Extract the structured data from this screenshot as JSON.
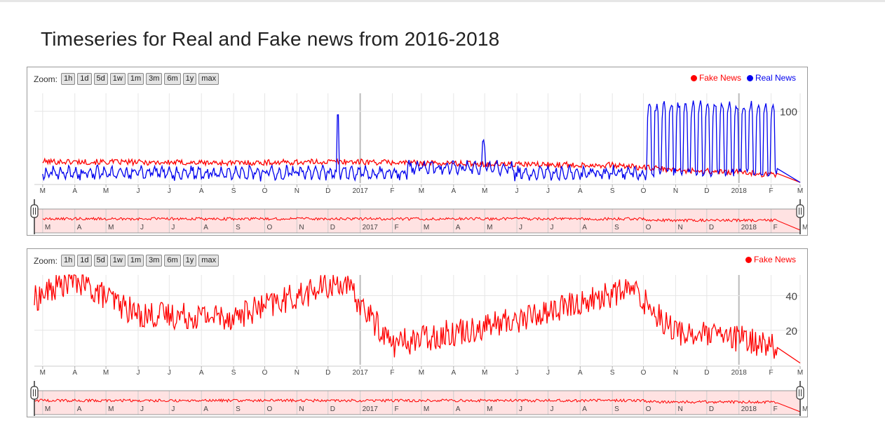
{
  "page": {
    "title": "Timeseries for Real and Fake news from 2016-2018"
  },
  "zoom": {
    "label": "Zoom:",
    "buttons": [
      "1h",
      "1d",
      "5d",
      "1w",
      "1m",
      "3m",
      "6m",
      "1y",
      "max"
    ]
  },
  "colors": {
    "fake": "#ff0000",
    "real": "#0000ee",
    "grid": "#e6e6e6",
    "navigator_fill": "#ffe2e2"
  },
  "chart_data": [
    {
      "type": "line",
      "title": "",
      "x_range": [
        "2016-02-22",
        "2018-03-01"
      ],
      "y_ticks": [
        100
      ],
      "ylim": [
        0,
        125
      ],
      "month_ticks": [
        "M",
        "A",
        "M",
        "J",
        "J",
        "A",
        "S",
        "O",
        "N",
        "D",
        "2017",
        "F",
        "M",
        "A",
        "M",
        "J",
        "J",
        "A",
        "S",
        "O",
        "N",
        "D",
        "2018",
        "F",
        "M"
      ],
      "legend_placement": "top-right",
      "series": [
        {
          "name": "Fake News",
          "color": "#ff0000",
          "summary": [
            {
              "date": "2016-03-01",
              "value": 30
            },
            {
              "date": "2016-06-01",
              "value": 29
            },
            {
              "date": "2016-09-01",
              "value": 28
            },
            {
              "date": "2016-12-15",
              "value": 30
            },
            {
              "date": "2017-03-01",
              "value": 28
            },
            {
              "date": "2017-06-01",
              "value": 26
            },
            {
              "date": "2017-09-01",
              "value": 25
            },
            {
              "date": "2017-11-01",
              "value": 18
            },
            {
              "date": "2018-01-01",
              "value": 15
            },
            {
              "date": "2018-02-07",
              "value": 11
            },
            {
              "date": "2018-03-01",
              "value": 1
            }
          ]
        },
        {
          "name": "Real News",
          "color": "#0000ee",
          "summary": [
            {
              "date": "2016-03-01",
              "value": 14
            },
            {
              "date": "2016-06-01",
              "value": 13
            },
            {
              "date": "2016-09-01",
              "value": 12
            },
            {
              "date": "2016-12-11",
              "value": 90
            },
            {
              "date": "2017-03-01",
              "value": 22
            },
            {
              "date": "2017-05-01",
              "value": 55
            },
            {
              "date": "2017-09-01",
              "value": 15
            },
            {
              "date": "2017-10-10",
              "value": 105
            },
            {
              "date": "2017-12-01",
              "value": 108
            },
            {
              "date": "2018-01-26",
              "value": 128
            },
            {
              "date": "2018-02-07",
              "value": 8
            },
            {
              "date": "2018-03-01",
              "value": 1
            }
          ]
        }
      ]
    },
    {
      "type": "line",
      "title": "",
      "x_range": [
        "2016-02-22",
        "2018-03-01"
      ],
      "y_ticks": [
        20,
        40
      ],
      "ylim": [
        0,
        52
      ],
      "month_ticks": [
        "M",
        "A",
        "M",
        "J",
        "J",
        "A",
        "S",
        "O",
        "N",
        "D",
        "2017",
        "F",
        "M",
        "A",
        "M",
        "J",
        "J",
        "A",
        "S",
        "O",
        "N",
        "D",
        "2018",
        "F",
        "M"
      ],
      "legend_placement": "top-right",
      "series": [
        {
          "name": "Fake News",
          "color": "#ff0000",
          "summary": [
            {
              "date": "2016-02-22",
              "value": 38
            },
            {
              "date": "2016-03-30",
              "value": 50
            },
            {
              "date": "2016-06-01",
              "value": 29
            },
            {
              "date": "2016-09-01",
              "value": 28
            },
            {
              "date": "2016-12-15",
              "value": 48
            },
            {
              "date": "2017-02-01",
              "value": 12
            },
            {
              "date": "2017-06-01",
              "value": 26
            },
            {
              "date": "2017-09-20",
              "value": 44
            },
            {
              "date": "2017-11-01",
              "value": 19
            },
            {
              "date": "2018-01-01",
              "value": 15
            },
            {
              "date": "2018-02-07",
              "value": 11
            },
            {
              "date": "2018-03-01",
              "value": 1
            }
          ]
        }
      ]
    }
  ]
}
